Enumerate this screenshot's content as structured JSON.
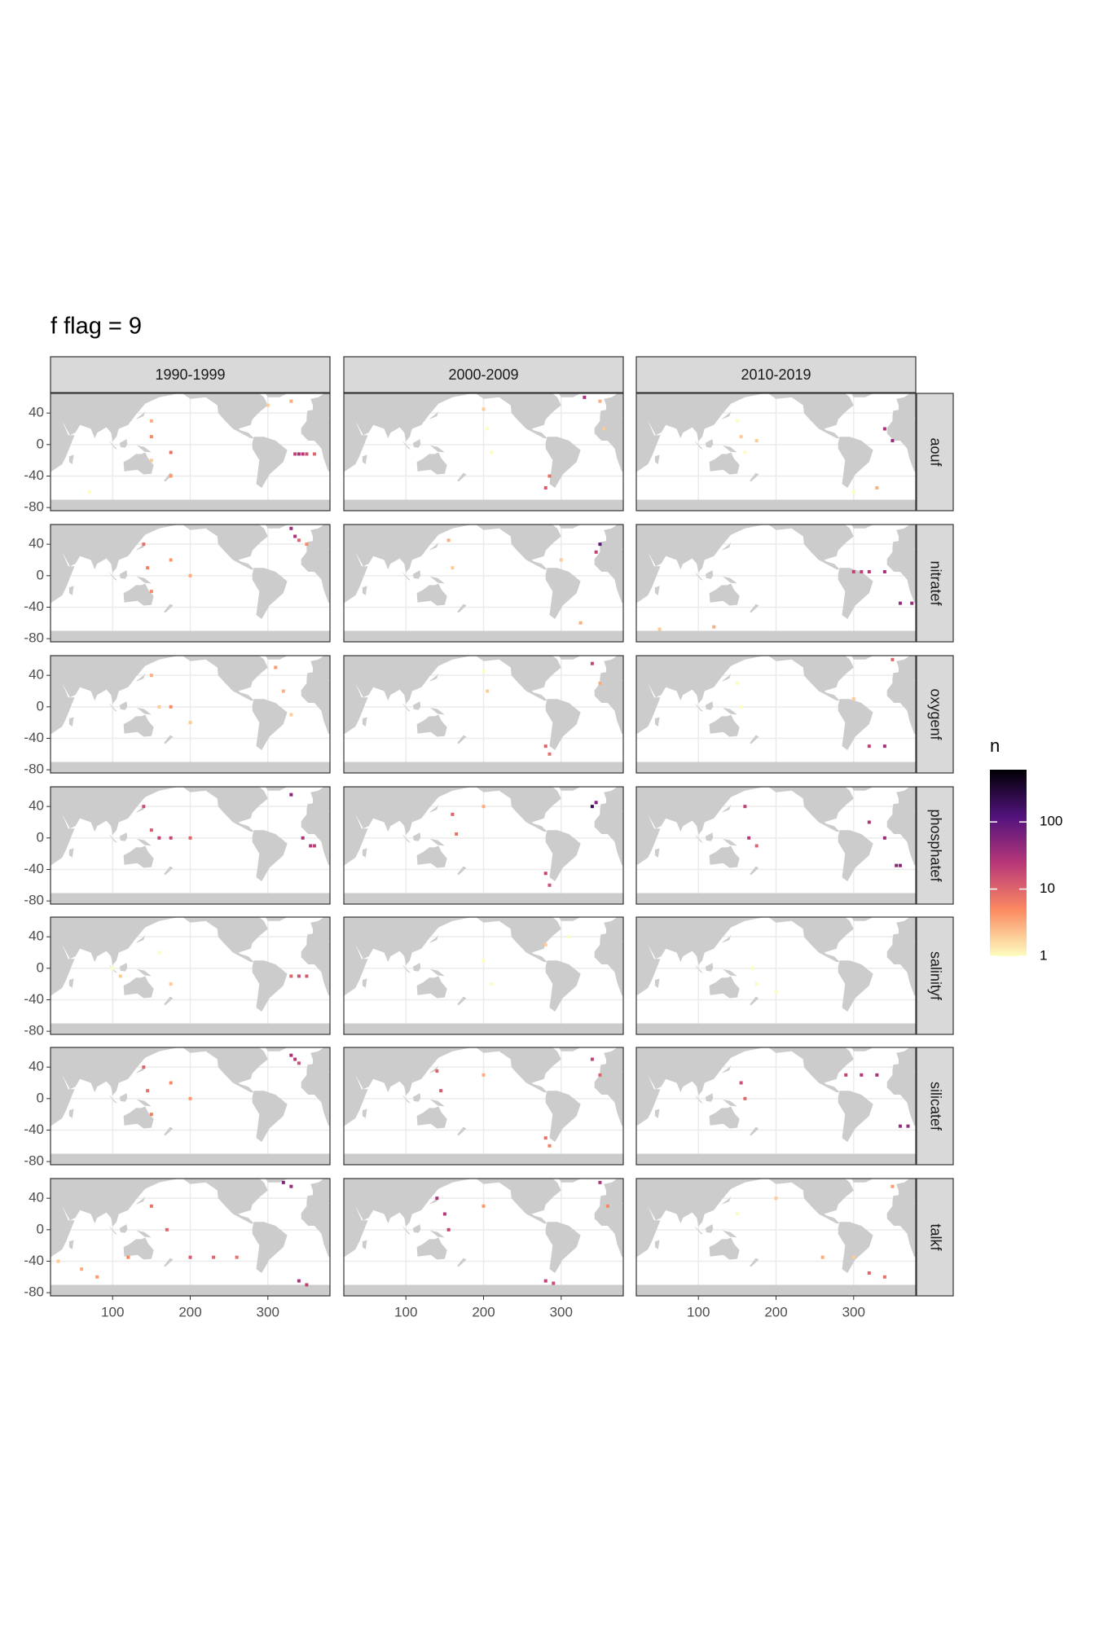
{
  "chart_data": {
    "type": "faceted-map",
    "title": "f flag = 9",
    "columns": [
      "1990-1999",
      "2000-2009",
      "2010-2019"
    ],
    "rows": [
      "aouf",
      "nitratef",
      "oxygenf",
      "phosphatef",
      "salinityf",
      "silicatef",
      "talkf"
    ],
    "xlim": [
      20,
      380
    ],
    "ylim": [
      -84,
      65
    ],
    "xticks": [
      100,
      200,
      300
    ],
    "yticks": [
      40,
      0,
      -40,
      -80
    ],
    "grid": true,
    "legend": {
      "title": "n",
      "log": true,
      "lim": [
        1,
        600
      ],
      "ticks": [
        1,
        10,
        100
      ],
      "palette": [
        "#fcfdbf",
        "#fc8961",
        "#b73779",
        "#51127c",
        "#000004"
      ]
    },
    "panels": [
      {
        "x": [
          150,
          150,
          150,
          175,
          175,
          335,
          340,
          345,
          350,
          360,
          330,
          300,
          70
        ],
        "y": [
          30,
          10,
          -20,
          -10,
          -40,
          -12,
          -12,
          -12,
          -12,
          -12,
          55,
          50,
          -60
        ],
        "n": [
          3,
          5,
          2,
          8,
          4,
          20,
          30,
          25,
          15,
          10,
          3,
          2,
          1
        ]
      },
      {
        "x": [
          200,
          205,
          210,
          280,
          330,
          350,
          355,
          285
        ],
        "y": [
          45,
          20,
          -10,
          -55,
          60,
          55,
          20,
          -40
        ],
        "n": [
          2,
          1,
          1,
          12,
          30,
          3,
          2,
          8
        ]
      },
      {
        "x": [
          150,
          155,
          160,
          175,
          300,
          340,
          350,
          330
        ],
        "y": [
          30,
          10,
          -10,
          5,
          -60,
          20,
          5,
          -55
        ],
        "n": [
          1,
          2,
          1,
          2,
          1,
          30,
          40,
          3
        ]
      },
      {
        "x": [
          140,
          145,
          150,
          175,
          200,
          330,
          335,
          340,
          350
        ],
        "y": [
          40,
          10,
          -20,
          20,
          0,
          60,
          50,
          45,
          40
        ],
        "n": [
          8,
          6,
          5,
          4,
          3,
          40,
          30,
          10,
          5
        ]
      },
      {
        "x": [
          155,
          160,
          300,
          350,
          345,
          325
        ],
        "y": [
          45,
          10,
          20,
          40,
          30,
          -60
        ],
        "n": [
          3,
          2,
          2,
          100,
          20,
          3
        ]
      },
      {
        "x": [
          300,
          310,
          320,
          340,
          360,
          375,
          120,
          50
        ],
        "y": [
          5,
          5,
          5,
          5,
          -35,
          -35,
          -65,
          -68
        ],
        "n": [
          20,
          20,
          25,
          30,
          40,
          40,
          3,
          2
        ]
      },
      {
        "x": [
          150,
          160,
          175,
          200,
          310,
          320,
          330
        ],
        "y": [
          40,
          0,
          0,
          -20,
          50,
          20,
          -10
        ],
        "n": [
          3,
          2,
          5,
          2,
          4,
          3,
          2
        ]
      },
      {
        "x": [
          200,
          205,
          280,
          285,
          340,
          350
        ],
        "y": [
          45,
          20,
          -50,
          -60,
          55,
          30
        ],
        "n": [
          1,
          2,
          10,
          8,
          20,
          3
        ]
      },
      {
        "x": [
          150,
          155,
          300,
          320,
          340,
          350
        ],
        "y": [
          30,
          0,
          10,
          -50,
          -50,
          60
        ],
        "n": [
          1,
          1,
          2,
          20,
          30,
          10
        ]
      },
      {
        "x": [
          140,
          150,
          160,
          175,
          200,
          330,
          345,
          355,
          360
        ],
        "y": [
          40,
          10,
          0,
          0,
          0,
          55,
          0,
          -10,
          -10
        ],
        "n": [
          15,
          12,
          20,
          18,
          10,
          50,
          30,
          25,
          20
        ]
      },
      {
        "x": [
          160,
          165,
          200,
          280,
          285,
          340,
          345
        ],
        "y": [
          30,
          5,
          40,
          -45,
          -60,
          40,
          45
        ],
        "n": [
          10,
          8,
          3,
          20,
          15,
          200,
          60
        ]
      },
      {
        "x": [
          160,
          165,
          175,
          320,
          340,
          355,
          360
        ],
        "y": [
          40,
          0,
          -10,
          20,
          0,
          -35,
          -35
        ],
        "n": [
          20,
          25,
          10,
          30,
          40,
          50,
          50
        ]
      },
      {
        "x": [
          100,
          110,
          160,
          175,
          330,
          340,
          350
        ],
        "y": [
          0,
          -10,
          20,
          -20,
          -10,
          -10,
          -10
        ],
        "n": [
          1,
          2,
          1,
          2,
          10,
          15,
          12
        ]
      },
      {
        "x": [
          200,
          210,
          280,
          310
        ],
        "y": [
          10,
          -20,
          30,
          40
        ],
        "n": [
          1,
          1,
          2,
          1
        ]
      },
      {
        "x": [
          170,
          175,
          200
        ],
        "y": [
          0,
          -20,
          -30
        ],
        "n": [
          1,
          1,
          1
        ]
      },
      {
        "x": [
          140,
          145,
          150,
          175,
          200,
          330,
          335,
          340
        ],
        "y": [
          40,
          10,
          -20,
          20,
          0,
          55,
          50,
          45
        ],
        "n": [
          10,
          8,
          6,
          5,
          4,
          30,
          25,
          15
        ]
      },
      {
        "x": [
          140,
          145,
          200,
          280,
          285,
          340,
          350
        ],
        "y": [
          35,
          10,
          30,
          -50,
          -60,
          50,
          30
        ],
        "n": [
          10,
          12,
          3,
          8,
          6,
          20,
          10
        ]
      },
      {
        "x": [
          155,
          160,
          290,
          310,
          330,
          360,
          370
        ],
        "y": [
          20,
          0,
          30,
          30,
          30,
          -35,
          -35
        ],
        "n": [
          15,
          10,
          20,
          25,
          30,
          40,
          40
        ]
      },
      {
        "x": [
          30,
          60,
          80,
          120,
          150,
          170,
          200,
          230,
          260,
          320,
          330,
          340,
          350
        ],
        "y": [
          -40,
          -50,
          -60,
          -35,
          30,
          0,
          -35,
          -35,
          -35,
          60,
          55,
          -65,
          -70
        ],
        "n": [
          2,
          3,
          4,
          5,
          8,
          10,
          12,
          10,
          8,
          60,
          40,
          30,
          20
        ]
      },
      {
        "x": [
          140,
          150,
          155,
          200,
          280,
          290,
          350,
          360
        ],
        "y": [
          40,
          20,
          0,
          30,
          -65,
          -68,
          60,
          30
        ],
        "n": [
          30,
          25,
          20,
          4,
          20,
          15,
          30,
          5
        ]
      },
      {
        "x": [
          150,
          200,
          260,
          300,
          320,
          340,
          350
        ],
        "y": [
          20,
          40,
          -35,
          -35,
          -55,
          -60,
          55
        ],
        "n": [
          1,
          2,
          3,
          2,
          10,
          8,
          4
        ]
      }
    ]
  }
}
